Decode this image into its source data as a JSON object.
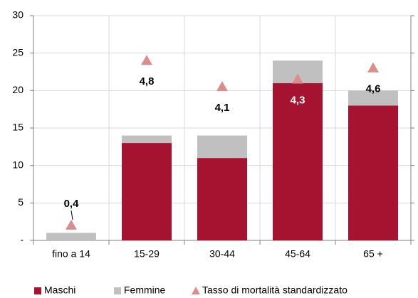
{
  "chart_data": {
    "type": "bar",
    "stacked": true,
    "categories": [
      "fino a 14",
      "15-29",
      "30-44",
      "45-64",
      "65 +"
    ],
    "series": [
      {
        "name": "Maschi",
        "color": "#a51331",
        "values": [
          0,
          13,
          11,
          21,
          18
        ]
      },
      {
        "name": "Femmine",
        "color": "#c0c0c0",
        "values": [
          1,
          1,
          3,
          3,
          2
        ]
      },
      {
        "name": "Tasso di mortalità standardizzato",
        "color": "#d98d8d",
        "type": "scatter",
        "marker": "triangle",
        "axis": "y2",
        "values": [
          0.4,
          4.8,
          4.1,
          4.3,
          4.6
        ],
        "value_labels": [
          "0,4",
          "4,8",
          "4,1",
          "4,3",
          "4,6"
        ]
      }
    ],
    "ylim": [
      0,
      30
    ],
    "yticks": [
      {
        "value": 0,
        "label": "-"
      },
      5,
      10,
      15,
      20,
      25,
      30
    ],
    "y2lim": [
      0,
      6
    ],
    "grid": true,
    "legend": "bottom"
  }
}
